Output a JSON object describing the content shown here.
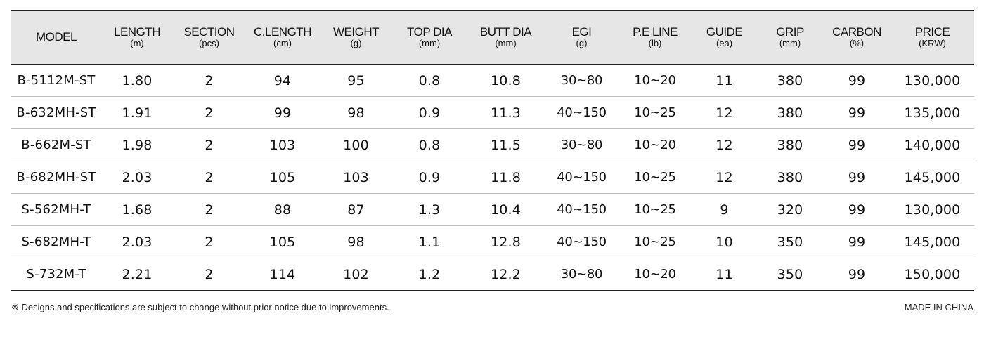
{
  "table": {
    "columns": [
      {
        "key": "model",
        "label": "MODEL",
        "unit": ""
      },
      {
        "key": "length",
        "label": "LENGTH",
        "unit": "(m)"
      },
      {
        "key": "section",
        "label": "SECTION",
        "unit": "(pcs)"
      },
      {
        "key": "c_length",
        "label": "C.LENGTH",
        "unit": "(cm)"
      },
      {
        "key": "weight",
        "label": "WEIGHT",
        "unit": "(g)"
      },
      {
        "key": "top_dia",
        "label": "TOP DIA",
        "unit": "(mm)"
      },
      {
        "key": "butt_dia",
        "label": "BUTT DIA",
        "unit": "(mm)"
      },
      {
        "key": "egi",
        "label": "EGI",
        "unit": "(g)"
      },
      {
        "key": "pe_line",
        "label": "P.E LINE",
        "unit": "(lb)"
      },
      {
        "key": "guide",
        "label": "GUIDE",
        "unit": "(ea)"
      },
      {
        "key": "grip",
        "label": "GRIP",
        "unit": "(mm)"
      },
      {
        "key": "carbon",
        "label": "CARBON",
        "unit": "(%)"
      },
      {
        "key": "price",
        "label": "PRICE",
        "unit": "(KRW)"
      }
    ],
    "rows": [
      [
        "B-5112M-ST",
        "1.80",
        "2",
        "94",
        "95",
        "0.8",
        "10.8",
        "30~80",
        "10~20",
        "11",
        "380",
        "99",
        "130,000"
      ],
      [
        "B-632MH-ST",
        "1.91",
        "2",
        "99",
        "98",
        "0.9",
        "11.3",
        "40~150",
        "10~25",
        "12",
        "380",
        "99",
        "135,000"
      ],
      [
        "B-662M-ST",
        "1.98",
        "2",
        "103",
        "100",
        "0.8",
        "11.5",
        "30~80",
        "10~20",
        "12",
        "380",
        "99",
        "140,000"
      ],
      [
        "B-682MH-ST",
        "2.03",
        "2",
        "105",
        "103",
        "0.9",
        "11.8",
        "40~150",
        "10~25",
        "12",
        "380",
        "99",
        "145,000"
      ],
      [
        "S-562MH-T",
        "1.68",
        "2",
        "88",
        "87",
        "1.3",
        "10.4",
        "40~150",
        "10~25",
        "9",
        "320",
        "99",
        "130,000"
      ],
      [
        "S-682MH-T",
        "2.03",
        "2",
        "105",
        "98",
        "1.1",
        "12.8",
        "40~150",
        "10~25",
        "10",
        "350",
        "99",
        "145,000"
      ],
      [
        "S-732M-T",
        "2.21",
        "2",
        "114",
        "102",
        "1.2",
        "12.2",
        "30~80",
        "10~20",
        "11",
        "350",
        "99",
        "150,000"
      ]
    ]
  },
  "footer": {
    "notice": "※ Designs and specifications are subject to change without prior notice due to improvements.",
    "origin": "MADE IN CHINA"
  },
  "colors": {
    "header_background": "#e6e6e6",
    "rule_dark": "#222222",
    "rule_light": "#bdbdbd"
  }
}
